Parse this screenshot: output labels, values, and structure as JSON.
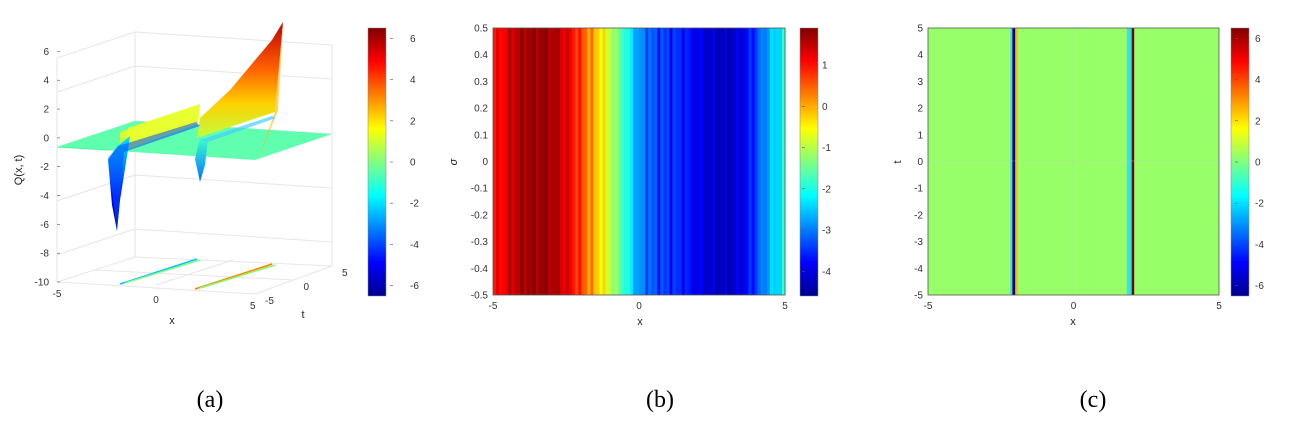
{
  "colorscale": [
    "#00008f",
    "#0000ff",
    "#0080ff",
    "#00ffff",
    "#80ff80",
    "#ffff00",
    "#ff8000",
    "#ff0000",
    "#800000"
  ],
  "chart_data": [
    {
      "panel": "a",
      "type": "surface",
      "caption": "(a)",
      "xlabel": "x",
      "ylabel": "t",
      "zlabel": "Q(x, t)",
      "xlim": [
        -5,
        5
      ],
      "ylim": [
        -5,
        5
      ],
      "zlim": [
        -10,
        7
      ],
      "x_ticks": [
        "-5",
        "0",
        "5"
      ],
      "t_ticks": [
        "-5",
        "0",
        "5"
      ],
      "z_ticks": [
        "6",
        "4",
        "2",
        "0",
        "-2",
        "-4",
        "-6",
        "-8",
        "-10"
      ],
      "colorbar_ticks": [
        "6",
        "4",
        "2",
        "0",
        "-2",
        "-4",
        "-6"
      ],
      "colorbar_range": [
        -6.5,
        6.5
      ],
      "singular_lines_x": [
        -2,
        2
      ],
      "peaks": [
        {
          "x": -2,
          "t": -5,
          "min": -6.3,
          "max": 2.5
        },
        {
          "x": 2,
          "t": -5,
          "min": -1.8,
          "max": 6.3
        }
      ]
    },
    {
      "panel": "b",
      "type": "heatmap",
      "caption": "(b)",
      "xlabel": "x",
      "ylabel": "σ",
      "xlim": [
        -5,
        5
      ],
      "ylim": [
        -0.5,
        0.5
      ],
      "x_ticks": [
        "-5",
        "0",
        "5"
      ],
      "y_ticks": [
        "0.5",
        "0.4",
        "0.3",
        "0.2",
        "0.1",
        "0",
        "-0.1",
        "-0.2",
        "-0.3",
        "-0.4",
        "-0.5"
      ],
      "colorbar_ticks": [
        "1",
        "0",
        "-1",
        "-2",
        "-3",
        "-4"
      ],
      "colorbar_range": [
        -4.6,
        1.9
      ],
      "x_profile": {
        "x": [
          -5,
          -4.5,
          -4,
          -3.5,
          -3,
          -2.5,
          -2,
          -1.5,
          -1,
          -0.5,
          0,
          0.5,
          1,
          1.5,
          2,
          2.5,
          3,
          3.5,
          4,
          4.5,
          5
        ],
        "values": [
          0.9,
          1.3,
          1.7,
          1.8,
          1.7,
          1.3,
          0.7,
          -0.1,
          -0.9,
          -1.8,
          -2.9,
          -3.3,
          -3.5,
          -3.6,
          -3.9,
          -4.2,
          -4.3,
          -4.0,
          -3.4,
          -2.6,
          -2.1
        ]
      }
    },
    {
      "panel": "c",
      "type": "heatmap",
      "caption": "(c)",
      "xlabel": "x",
      "ylabel": "t",
      "xlim": [
        -5,
        5
      ],
      "ylim": [
        -5,
        5
      ],
      "x_ticks": [
        "-5",
        "0",
        "5"
      ],
      "y_ticks": [
        "5",
        "4",
        "3",
        "2",
        "1",
        "0",
        "-1",
        "-2",
        "-3",
        "-4",
        "-5"
      ],
      "colorbar_ticks": [
        "6",
        "4",
        "2",
        "0",
        "-2",
        "-4",
        "-6"
      ],
      "colorbar_range": [
        -6.5,
        6.5
      ],
      "background_value": 0.3,
      "singular_lines": [
        {
          "x": -2,
          "left_value": -6.5,
          "right_value": 2.5
        },
        {
          "x": 2,
          "left_value": -1.8,
          "right_value": 6.5
        }
      ]
    }
  ]
}
